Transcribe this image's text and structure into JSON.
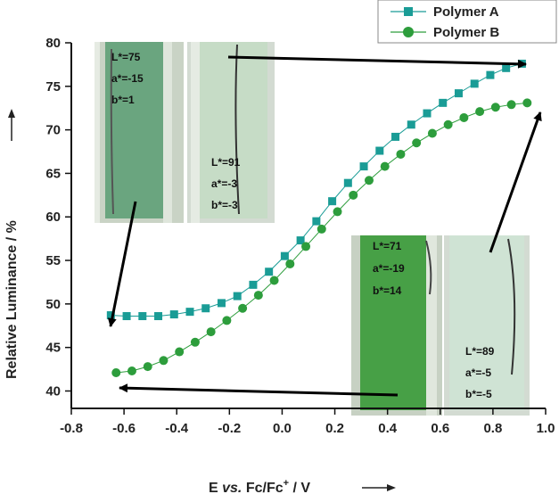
{
  "chart_data": {
    "type": "line",
    "xlabel_parts": {
      "pre": "E ",
      "italic": "vs.",
      "mid": " Fc/Fc",
      "sup": "+",
      "post": " / V"
    },
    "ylabel": "Relative Luminance / %",
    "xlim": [
      -0.8,
      1.0
    ],
    "ylim": [
      38,
      80
    ],
    "xticks": [
      "-0.8",
      "-0.6",
      "-0.4",
      "-0.2",
      "0.0",
      "0.2",
      "0.4",
      "0.6",
      "0.8",
      "1.0"
    ],
    "yticks": [
      "40",
      "45",
      "50",
      "55",
      "60",
      "65",
      "70",
      "75",
      "80"
    ],
    "legend_position": "top-right",
    "series": [
      {
        "name": "Polymer A",
        "color": "#1a9c96",
        "marker": "square",
        "x": [
          -0.65,
          -0.59,
          -0.53,
          -0.47,
          -0.41,
          -0.35,
          -0.29,
          -0.23,
          -0.17,
          -0.11,
          -0.05,
          0.01,
          0.07,
          0.13,
          0.19,
          0.25,
          0.31,
          0.37,
          0.43,
          0.49,
          0.55,
          0.61,
          0.67,
          0.73,
          0.79,
          0.85,
          0.91
        ],
        "y": [
          48.7,
          48.6,
          48.6,
          48.6,
          48.8,
          49.1,
          49.5,
          50.1,
          50.9,
          52.2,
          53.7,
          55.5,
          57.3,
          59.5,
          61.8,
          63.9,
          65.8,
          67.6,
          69.2,
          70.6,
          71.9,
          73.1,
          74.2,
          75.3,
          76.3,
          77.1,
          77.6
        ]
      },
      {
        "name": "Polymer B",
        "color": "#2d9d3c",
        "marker": "circle",
        "x": [
          -0.63,
          -0.57,
          -0.51,
          -0.45,
          -0.39,
          -0.33,
          -0.27,
          -0.21,
          -0.15,
          -0.09,
          -0.03,
          0.03,
          0.09,
          0.15,
          0.21,
          0.27,
          0.33,
          0.39,
          0.45,
          0.51,
          0.57,
          0.63,
          0.69,
          0.75,
          0.81,
          0.87,
          0.93
        ],
        "y": [
          42.1,
          42.3,
          42.8,
          43.5,
          44.5,
          45.6,
          46.8,
          48.1,
          49.5,
          51.0,
          52.7,
          54.6,
          56.6,
          58.6,
          60.6,
          62.5,
          64.2,
          65.8,
          67.2,
          68.5,
          69.6,
          70.6,
          71.4,
          72.1,
          72.6,
          72.9,
          73.1
        ]
      }
    ]
  },
  "insets": [
    {
      "L": "L*=75",
      "a": "a*=-15",
      "b": "b*=1"
    },
    {
      "L": "L*=91",
      "a": "a*=-3",
      "b": "b*=-3"
    },
    {
      "L": "L*=71",
      "a": "a*=-19",
      "b": "b*=14"
    },
    {
      "L": "L*=89",
      "a": "a*=-5",
      "b": "b*=-5"
    }
  ],
  "colors": {
    "polymer_a": "#1a9c96",
    "polymer_b": "#2d9d3c",
    "arrow": "#000000"
  }
}
